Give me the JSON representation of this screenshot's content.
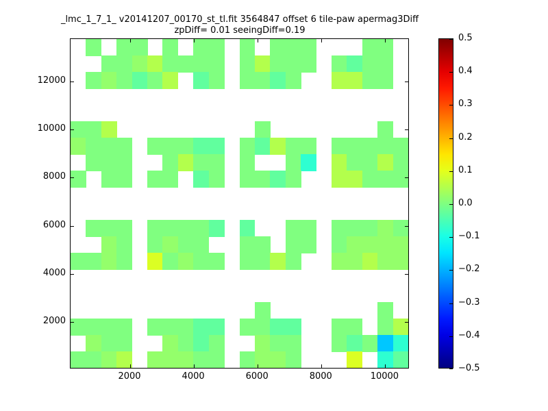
{
  "title": {
    "line1": "_lmc_1_7_1_ v20141207_00170_st_tl.fit 3564847 offset 6 tile-paw apermag3Diff",
    "line2": "zpDiff= 0.01 seeingDiff=0.19"
  },
  "chart_data": {
    "type": "heatmap",
    "colormap": "jet",
    "value_range": [
      -0.5,
      0.5
    ],
    "x_range": [
      131,
      10765
    ],
    "y_range": [
      50,
      13750
    ],
    "x_ticks": [
      2000,
      4000,
      6000,
      8000,
      10000
    ],
    "y_ticks": [
      2000,
      4000,
      6000,
      8000,
      10000,
      12000
    ],
    "colorbar_tick_labels": [
      "0.5",
      "0.4",
      "0.3",
      "0.2",
      "0.1",
      "0.0",
      "−0.1",
      "−0.2",
      "−0.3",
      "−0.4",
      "−0.5"
    ],
    "legend_position": "right-colorbar",
    "grid": {
      "cols": 22,
      "rows": 20,
      "value_map": {
        "a": 0.0,
        "b": 0.02,
        "c": 0.05,
        "d": -0.03,
        "e": -0.08,
        "Y": 0.09,
        "C": -0.18
      },
      "rows_top_to_bottom": [
        ".a.aa.a.aa.a.aaa...aa.",
        "..aabcaaaa.acaaa.adaa.",
        ".abadac.da.aada..ccaa.",
        "......................",
        "......................",
        "aac.........a.......a.",
        "baaa.aaadd.adcaa.aaaaa",
        ".aaa..acaa.a..ae.caaca",
        "a.aa.aa.da.aada..ccaaa",
        "......................",
        "......................",
        ".aaa.aaaad.d..aa.aaaba",
        "..ba.abaa..aa.aa.abbbb",
        "aaba.Yabaa.aaca..bbcbb",
        "......................",
        "......................",
        "............a.......a.",
        "aaaa.aaadd.aadd..aa.ac",
        ".baa..bada..baa..adaCe",
        "aabc.bbbaa.abba...Y.ed"
      ]
    }
  }
}
